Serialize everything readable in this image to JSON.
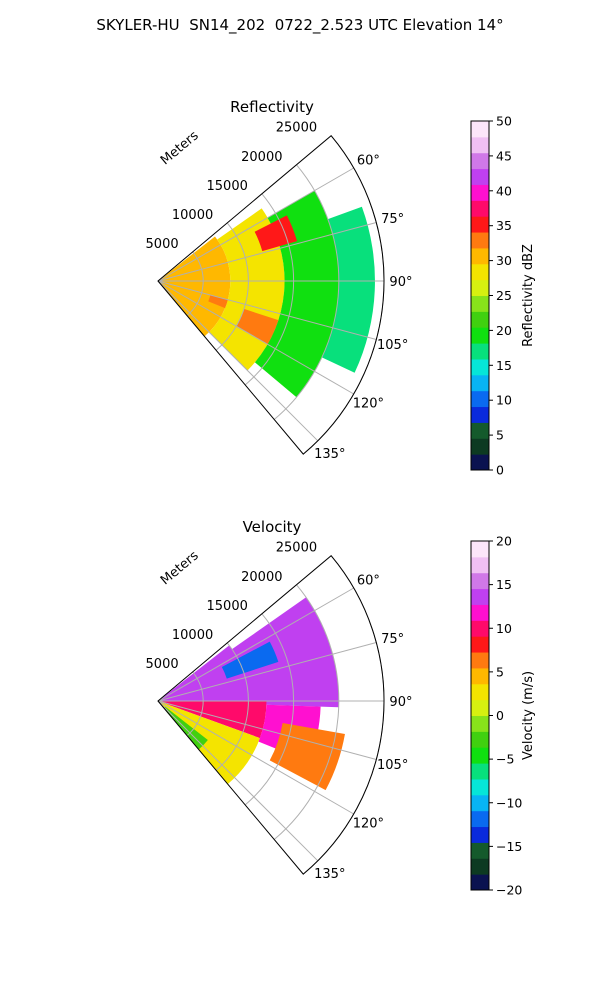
{
  "figure": {
    "title": "SKYLER-HU  SN14_202  0722_2.523 UTC Elevation 14°"
  },
  "chart_data": [
    {
      "type": "heatmap",
      "projection": "polar-sector",
      "title": "Reflectivity",
      "radial_axis_label": "Meters",
      "radial_ticks": [
        5000,
        10000,
        15000,
        20000,
        25000
      ],
      "radial_tick_labels": [
        "5000",
        "10000",
        "15000",
        "20000",
        "25000"
      ],
      "r_max": 25000,
      "angle_range_deg": [
        50,
        140
      ],
      "angular_ticks_deg": [
        60,
        75,
        90,
        105,
        120,
        135
      ],
      "angular_tick_labels": [
        "60°",
        "75°",
        "90°",
        "105°",
        "120°",
        "135°"
      ],
      "grid": true,
      "colorbar": {
        "label": "Reflectivity dBZ",
        "range": [
          0,
          50
        ],
        "ticks": [
          0,
          5,
          10,
          15,
          20,
          25,
          30,
          35,
          40,
          45,
          50
        ],
        "tick_labels": [
          "0",
          "5",
          "10",
          "15",
          "20",
          "25",
          "30",
          "35",
          "40",
          "45",
          "50"
        ],
        "colors": [
          "#0a1250",
          "#0c3a22",
          "#145a2c",
          "#0a2adc",
          "#0a6af0",
          "#08b4f4",
          "#06e6d8",
          "#08e07c",
          "#10e010",
          "#40d010",
          "#88e21a",
          "#d6f010",
          "#f4e400",
          "#ffb800",
          "#ff7a10",
          "#ff1818",
          "#ff0a6a",
          "#ff10d0",
          "#c040f0",
          "#d078e8",
          "#f0c0f4",
          "#fce6fa"
        ]
      },
      "data_regions": [
        {
          "r": [
            0,
            8000
          ],
          "az": [
            52,
            140
          ],
          "value": 30
        },
        {
          "r": [
            8000,
            14000
          ],
          "az": [
            55,
            135
          ],
          "value": 28
        },
        {
          "r": [
            14000,
            20000
          ],
          "az": [
            60,
            130
          ],
          "value": 20
        },
        {
          "r": [
            20000,
            24000
          ],
          "az": [
            70,
            115
          ],
          "value": 17
        },
        {
          "r": [
            12000,
            16000
          ],
          "az": [
            63,
            74
          ],
          "value": 36
        },
        {
          "r": [
            6000,
            8000
          ],
          "az": [
            105,
            112
          ],
          "value": 34
        },
        {
          "r": [
            10000,
            14000
          ],
          "az": [
            108,
            120
          ],
          "value": 34
        }
      ]
    },
    {
      "type": "heatmap",
      "projection": "polar-sector",
      "title": "Velocity",
      "radial_axis_label": "Meters",
      "radial_ticks": [
        5000,
        10000,
        15000,
        20000,
        25000
      ],
      "radial_tick_labels": [
        "5000",
        "10000",
        "15000",
        "20000",
        "25000"
      ],
      "r_max": 25000,
      "angle_range_deg": [
        50,
        140
      ],
      "angular_ticks_deg": [
        60,
        75,
        90,
        105,
        120,
        135
      ],
      "angular_tick_labels": [
        "60°",
        "75°",
        "90°",
        "105°",
        "120°",
        "135°"
      ],
      "grid": true,
      "colorbar": {
        "label": "Velocity (m/s)",
        "range": [
          -20,
          20
        ],
        "ticks": [
          -20,
          -15,
          -10,
          -5,
          0,
          5,
          10,
          15,
          20
        ],
        "tick_labels": [
          "−20",
          "−15",
          "−10",
          "−5",
          "0",
          "5",
          "10",
          "15",
          "20"
        ],
        "colors": [
          "#0a1250",
          "#0c3a22",
          "#145a2c",
          "#0a2adc",
          "#0a6af0",
          "#08b4f4",
          "#06e6d8",
          "#08e07c",
          "#10e010",
          "#40d010",
          "#88e21a",
          "#d6f010",
          "#f4e400",
          "#ffb800",
          "#ff7a10",
          "#ff1818",
          "#ff0a6a",
          "#ff10d0",
          "#c040f0",
          "#d078e8",
          "#f0c0f4",
          "#fce6fa"
        ]
      },
      "data_regions": [
        {
          "r": [
            0,
            10000
          ],
          "az": [
            52,
            90
          ],
          "value": 13
        },
        {
          "r": [
            10000,
            20000
          ],
          "az": [
            55,
            92
          ],
          "value": 14
        },
        {
          "r": [
            0,
            12000
          ],
          "az": [
            90,
            110
          ],
          "value": 10
        },
        {
          "r": [
            0,
            12000
          ],
          "az": [
            110,
            140
          ],
          "value": 2
        },
        {
          "r": [
            12000,
            18000
          ],
          "az": [
            92,
            112
          ],
          "value": 12
        },
        {
          "r": [
            14000,
            21000
          ],
          "az": [
            100,
            118
          ],
          "value": 7
        },
        {
          "r": [
            8000,
            14000
          ],
          "az": [
            62,
            72
          ],
          "value": -12
        },
        {
          "r": [
            1000,
            7000
          ],
          "az": [
            128,
            140
          ],
          "value": -3
        }
      ]
    }
  ]
}
